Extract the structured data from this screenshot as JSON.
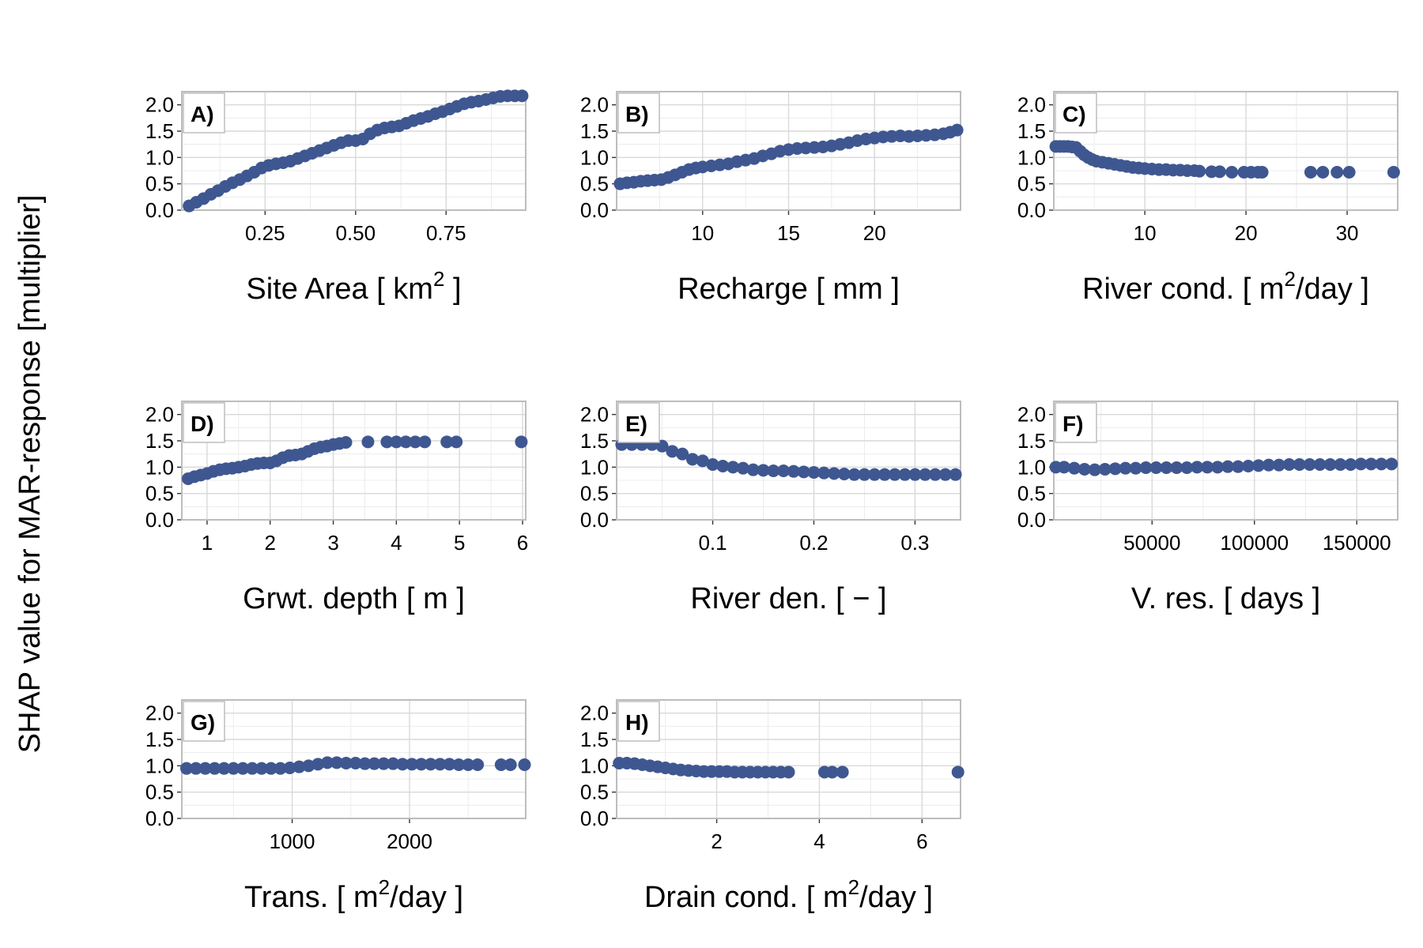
{
  "figure": {
    "ylabel": "SHAP value for MAR-response [multiplier]",
    "point_color": "#3f5791"
  },
  "chart_data": [
    {
      "type": "scatter",
      "panel": "A)",
      "xlabel": "Site Area [ km",
      "xlabel_sup": "2",
      "xlabel_tail": " ]",
      "xlim": [
        0.02,
        0.97
      ],
      "xticks": [
        0.25,
        0.5,
        0.75
      ],
      "xtick_labels": [
        "0.25",
        "0.50",
        "0.75"
      ],
      "ylim": [
        0,
        2.25
      ],
      "yticks": [
        0,
        0.5,
        1.0,
        1.5,
        2.0
      ],
      "ytick_labels": [
        "0.0",
        "0.5",
        "1.0",
        "1.5",
        "2.0"
      ],
      "x": [
        0.04,
        0.06,
        0.08,
        0.1,
        0.12,
        0.14,
        0.16,
        0.18,
        0.2,
        0.22,
        0.24,
        0.26,
        0.28,
        0.3,
        0.32,
        0.34,
        0.36,
        0.38,
        0.4,
        0.42,
        0.44,
        0.46,
        0.48,
        0.5,
        0.52,
        0.54,
        0.56,
        0.58,
        0.6,
        0.62,
        0.64,
        0.66,
        0.68,
        0.7,
        0.72,
        0.74,
        0.76,
        0.78,
        0.8,
        0.82,
        0.84,
        0.86,
        0.88,
        0.9,
        0.92,
        0.94,
        0.96
      ],
      "y": [
        0.08,
        0.15,
        0.22,
        0.3,
        0.37,
        0.45,
        0.52,
        0.58,
        0.65,
        0.72,
        0.8,
        0.85,
        0.88,
        0.9,
        0.93,
        0.98,
        1.03,
        1.08,
        1.13,
        1.18,
        1.23,
        1.28,
        1.32,
        1.32,
        1.35,
        1.45,
        1.52,
        1.56,
        1.58,
        1.6,
        1.65,
        1.7,
        1.74,
        1.78,
        1.83,
        1.87,
        1.92,
        1.97,
        2.02,
        2.05,
        2.07,
        2.1,
        2.13,
        2.16,
        2.17,
        2.17,
        2.17
      ]
    },
    {
      "type": "scatter",
      "panel": "B)",
      "xlabel": "Recharge [ mm ]",
      "xlabel_sup": "",
      "xlabel_tail": "",
      "xlim": [
        5,
        25
      ],
      "xticks": [
        10,
        15,
        20
      ],
      "xtick_labels": [
        "10",
        "15",
        "20"
      ],
      "ylim": [
        0,
        2.25
      ],
      "yticks": [
        0,
        0.5,
        1.0,
        1.5,
        2.0
      ],
      "ytick_labels": [
        "0.0",
        "0.5",
        "1.0",
        "1.5",
        "2.0"
      ],
      "x": [
        5.2,
        5.6,
        6.0,
        6.4,
        6.8,
        7.2,
        7.6,
        8.0,
        8.4,
        8.8,
        9.2,
        9.6,
        10.0,
        10.5,
        11.0,
        11.5,
        12.0,
        12.5,
        13.0,
        13.5,
        14.0,
        14.5,
        15.0,
        15.5,
        16.0,
        16.5,
        17.0,
        17.5,
        18.0,
        18.5,
        19.0,
        19.5,
        20.0,
        20.5,
        21.0,
        21.5,
        22.0,
        22.5,
        23.0,
        23.5,
        24.0,
        24.4,
        24.8
      ],
      "y": [
        0.5,
        0.52,
        0.53,
        0.55,
        0.56,
        0.57,
        0.58,
        0.62,
        0.67,
        0.72,
        0.77,
        0.8,
        0.82,
        0.84,
        0.86,
        0.88,
        0.92,
        0.95,
        0.98,
        1.03,
        1.07,
        1.12,
        1.15,
        1.17,
        1.18,
        1.19,
        1.2,
        1.22,
        1.25,
        1.28,
        1.32,
        1.35,
        1.37,
        1.39,
        1.4,
        1.41,
        1.4,
        1.41,
        1.42,
        1.43,
        1.45,
        1.48,
        1.52
      ]
    },
    {
      "type": "scatter",
      "panel": "C)",
      "xlabel": "River cond. [ m",
      "xlabel_sup": "2",
      "xlabel_tail": "/day ]",
      "xlim": [
        1,
        35
      ],
      "xticks": [
        10,
        20,
        30
      ],
      "xtick_labels": [
        "10",
        "20",
        "30"
      ],
      "ylim": [
        0,
        2.25
      ],
      "yticks": [
        0,
        0.5,
        1.0,
        1.5,
        2.0
      ],
      "ytick_labels": [
        "0.0",
        "0.5",
        "1.0",
        "1.5",
        "2.0"
      ],
      "x": [
        1.2,
        1.6,
        2.0,
        2.4,
        2.8,
        3.2,
        3.6,
        4.0,
        4.4,
        4.8,
        5.2,
        5.8,
        6.4,
        7.0,
        7.6,
        8.2,
        8.8,
        9.4,
        10.0,
        10.7,
        11.4,
        12.1,
        12.8,
        13.5,
        14.2,
        14.9,
        15.4,
        16.6,
        17.4,
        18.6,
        19.8,
        20.5,
        21.2,
        21.6,
        26.4,
        27.6,
        29.0,
        30.2,
        34.6
      ],
      "y": [
        1.21,
        1.21,
        1.21,
        1.21,
        1.2,
        1.19,
        1.12,
        1.05,
        1.0,
        0.96,
        0.93,
        0.91,
        0.89,
        0.87,
        0.85,
        0.83,
        0.81,
        0.8,
        0.79,
        0.78,
        0.77,
        0.77,
        0.76,
        0.76,
        0.75,
        0.75,
        0.74,
        0.73,
        0.73,
        0.72,
        0.72,
        0.72,
        0.72,
        0.72,
        0.72,
        0.72,
        0.72,
        0.72,
        0.72
      ]
    },
    {
      "type": "scatter",
      "panel": "D)",
      "xlabel": "Grwt. depth [ m ]",
      "xlabel_sup": "",
      "xlabel_tail": "",
      "xlim": [
        0.6,
        6.05
      ],
      "xticks": [
        1,
        2,
        3,
        4,
        5,
        6
      ],
      "xtick_labels": [
        "1",
        "2",
        "3",
        "4",
        "5",
        "6"
      ],
      "ylim": [
        0,
        2.25
      ],
      "yticks": [
        0,
        0.5,
        1.0,
        1.5,
        2.0
      ],
      "ytick_labels": [
        "0.0",
        "0.5",
        "1.0",
        "1.5",
        "2.0"
      ],
      "x": [
        0.7,
        0.8,
        0.9,
        1.0,
        1.1,
        1.2,
        1.3,
        1.4,
        1.5,
        1.6,
        1.7,
        1.8,
        1.9,
        2.0,
        2.1,
        2.2,
        2.3,
        2.4,
        2.5,
        2.6,
        2.7,
        2.8,
        2.9,
        3.0,
        3.1,
        3.2,
        3.55,
        3.85,
        4.0,
        4.15,
        4.3,
        4.45,
        4.8,
        4.95,
        5.98
      ],
      "y": [
        0.78,
        0.82,
        0.85,
        0.88,
        0.92,
        0.95,
        0.97,
        0.98,
        1.0,
        1.02,
        1.05,
        1.07,
        1.08,
        1.08,
        1.12,
        1.18,
        1.22,
        1.23,
        1.25,
        1.3,
        1.35,
        1.38,
        1.4,
        1.43,
        1.45,
        1.47,
        1.48,
        1.48,
        1.48,
        1.48,
        1.48,
        1.48,
        1.48,
        1.48,
        1.48
      ]
    },
    {
      "type": "scatter",
      "panel": "E)",
      "xlabel": "River den. [ − ]",
      "xlabel_sup": "",
      "xlabel_tail": "",
      "xlim": [
        0.005,
        0.345
      ],
      "xticks": [
        0.1,
        0.2,
        0.3
      ],
      "xtick_labels": [
        "0.1",
        "0.2",
        "0.3"
      ],
      "ylim": [
        0,
        2.25
      ],
      "yticks": [
        0,
        0.5,
        1.0,
        1.5,
        2.0
      ],
      "ytick_labels": [
        "0.0",
        "0.5",
        "1.0",
        "1.5",
        "2.0"
      ],
      "x": [
        0.01,
        0.02,
        0.03,
        0.04,
        0.05,
        0.06,
        0.07,
        0.08,
        0.09,
        0.1,
        0.11,
        0.12,
        0.13,
        0.14,
        0.15,
        0.16,
        0.17,
        0.18,
        0.19,
        0.2,
        0.21,
        0.22,
        0.23,
        0.24,
        0.25,
        0.26,
        0.27,
        0.28,
        0.29,
        0.3,
        0.31,
        0.32,
        0.33,
        0.34
      ],
      "y": [
        1.43,
        1.43,
        1.43,
        1.43,
        1.4,
        1.3,
        1.25,
        1.15,
        1.12,
        1.05,
        1.02,
        1.0,
        0.98,
        0.95,
        0.94,
        0.93,
        0.93,
        0.92,
        0.91,
        0.9,
        0.89,
        0.88,
        0.87,
        0.86,
        0.86,
        0.86,
        0.86,
        0.86,
        0.86,
        0.86,
        0.86,
        0.86,
        0.86,
        0.86
      ]
    },
    {
      "type": "scatter",
      "panel": "F)",
      "xlabel": "V. res. [ days ]",
      "xlabel_sup": "",
      "xlabel_tail": "",
      "xlim": [
        2000,
        170000
      ],
      "xticks": [
        50000,
        100000,
        150000
      ],
      "xtick_labels": [
        "50000",
        "100000",
        "150000"
      ],
      "ylim": [
        0,
        2.25
      ],
      "yticks": [
        0,
        0.5,
        1.0,
        1.5,
        2.0
      ],
      "ytick_labels": [
        "0.0",
        "0.5",
        "1.0",
        "1.5",
        "2.0"
      ],
      "x": [
        3000,
        7000,
        12000,
        17000,
        22000,
        27000,
        32000,
        37000,
        42000,
        47000,
        52000,
        57000,
        62000,
        67000,
        72000,
        77000,
        82000,
        87000,
        92000,
        97000,
        102000,
        107000,
        112000,
        117000,
        122000,
        127000,
        132000,
        137000,
        142000,
        147000,
        152000,
        157000,
        162000,
        167000
      ],
      "y": [
        1.0,
        1.0,
        0.98,
        0.96,
        0.95,
        0.96,
        0.97,
        0.98,
        0.98,
        0.99,
        0.99,
        0.99,
        0.99,
        0.99,
        1.0,
        1.0,
        1.0,
        1.01,
        1.01,
        1.02,
        1.03,
        1.04,
        1.04,
        1.05,
        1.05,
        1.05,
        1.05,
        1.05,
        1.05,
        1.05,
        1.06,
        1.06,
        1.06,
        1.06
      ]
    },
    {
      "type": "scatter",
      "panel": "G)",
      "xlabel": "Trans. [ m",
      "xlabel_sup": "2",
      "xlabel_tail": "/day ]",
      "xlim": [
        60,
        2990
      ],
      "xticks": [
        1000,
        2000
      ],
      "xtick_labels": [
        "1000",
        "2000"
      ],
      "ylim": [
        0,
        2.25
      ],
      "yticks": [
        0,
        0.5,
        1.0,
        1.5,
        2.0
      ],
      "ytick_labels": [
        "0.0",
        "0.5",
        "1.0",
        "1.5",
        "2.0"
      ],
      "x": [
        100,
        180,
        260,
        340,
        420,
        500,
        580,
        660,
        740,
        820,
        900,
        980,
        1060,
        1140,
        1220,
        1300,
        1380,
        1460,
        1540,
        1620,
        1700,
        1780,
        1860,
        1940,
        2020,
        2100,
        2180,
        2260,
        2340,
        2420,
        2500,
        2580,
        2780,
        2860,
        2980
      ],
      "y": [
        0.95,
        0.95,
        0.95,
        0.95,
        0.95,
        0.95,
        0.95,
        0.95,
        0.95,
        0.95,
        0.95,
        0.96,
        0.98,
        1.0,
        1.03,
        1.06,
        1.06,
        1.05,
        1.05,
        1.04,
        1.04,
        1.04,
        1.04,
        1.03,
        1.03,
        1.03,
        1.03,
        1.03,
        1.03,
        1.02,
        1.02,
        1.02,
        1.02,
        1.02,
        1.02
      ]
    },
    {
      "type": "scatter",
      "panel": "H)",
      "xlabel": "Drain cond. [ m",
      "xlabel_sup": "2",
      "xlabel_tail": "/day ]",
      "xlim": [
        0.05,
        6.75
      ],
      "xticks": [
        2,
        4,
        6
      ],
      "xtick_labels": [
        "2",
        "4",
        "6"
      ],
      "ylim": [
        0,
        2.25
      ],
      "yticks": [
        0,
        0.5,
        1.0,
        1.5,
        2.0
      ],
      "ytick_labels": [
        "0.0",
        "0.5",
        "1.0",
        "1.5",
        "2.0"
      ],
      "x": [
        0.1,
        0.25,
        0.4,
        0.55,
        0.7,
        0.85,
        1.0,
        1.15,
        1.3,
        1.45,
        1.6,
        1.75,
        1.9,
        2.05,
        2.2,
        2.35,
        2.5,
        2.65,
        2.8,
        2.95,
        3.1,
        3.25,
        3.4,
        4.1,
        4.25,
        4.45,
        6.7
      ],
      "y": [
        1.05,
        1.05,
        1.04,
        1.02,
        1.0,
        0.98,
        0.96,
        0.94,
        0.92,
        0.91,
        0.9,
        0.89,
        0.89,
        0.89,
        0.89,
        0.88,
        0.88,
        0.88,
        0.88,
        0.88,
        0.88,
        0.88,
        0.88,
        0.88,
        0.88,
        0.88,
        0.88
      ]
    }
  ]
}
